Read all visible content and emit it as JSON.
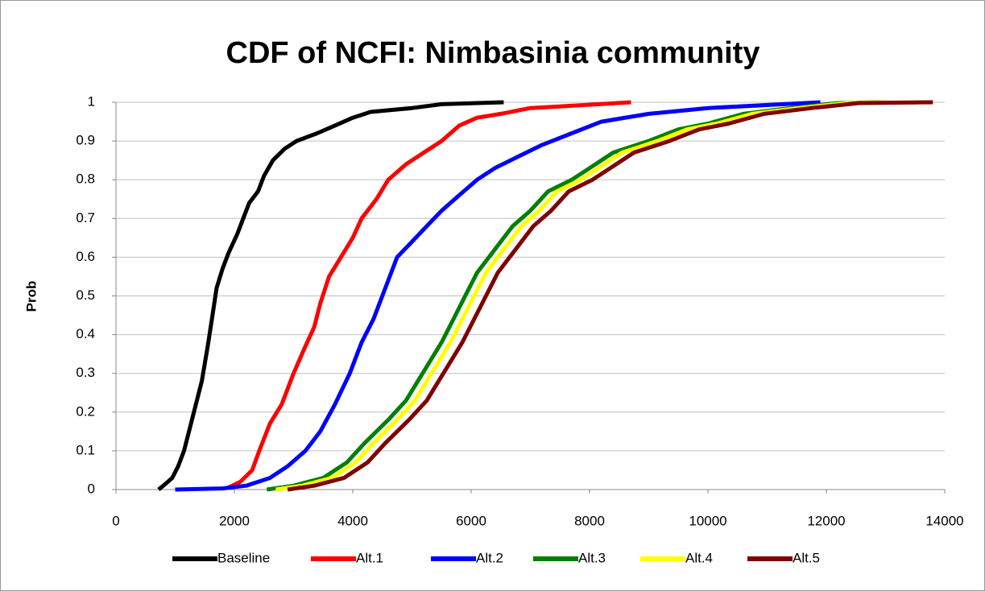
{
  "chart_data": {
    "type": "line",
    "title": "CDF of NCFI: Nimbasinia community",
    "y_label": "Prob",
    "xlim": [
      0,
      14000
    ],
    "xticks": [
      0,
      2000,
      4000,
      6000,
      8000,
      10000,
      12000,
      14000
    ],
    "ylim": [
      0,
      1
    ],
    "yticks": [
      0,
      0.1,
      0.2,
      0.3,
      0.4,
      0.5,
      0.6,
      0.7,
      0.8,
      0.9,
      1
    ],
    "grid": true,
    "legend": "bottom",
    "series": [
      {
        "name": "Baseline",
        "color": "#000000",
        "x": [
          720,
          800,
          950,
          1050,
          1150,
          1250,
          1350,
          1450,
          1550,
          1620,
          1700,
          1800,
          1900,
          2050,
          2150,
          2250,
          2400,
          2500,
          2650,
          2850,
          3050,
          3400,
          3700,
          4000,
          4300,
          5000,
          5500,
          6550
        ],
        "values": [
          0,
          0.01,
          0.03,
          0.06,
          0.1,
          0.16,
          0.22,
          0.28,
          0.37,
          0.44,
          0.52,
          0.57,
          0.61,
          0.66,
          0.7,
          0.74,
          0.77,
          0.81,
          0.85,
          0.88,
          0.9,
          0.92,
          0.94,
          0.96,
          0.975,
          0.985,
          0.995,
          1
        ]
      },
      {
        "name": "Alt.1",
        "color": "#ff0000",
        "x": [
          1900,
          2100,
          2300,
          2420,
          2600,
          2800,
          3000,
          3200,
          3350,
          3450,
          3600,
          3800,
          4000,
          4150,
          4400,
          4600,
          4900,
          5200,
          5500,
          5800,
          6100,
          6500,
          7000,
          7600,
          8700
        ],
        "values": [
          0.005,
          0.02,
          0.05,
          0.1,
          0.17,
          0.22,
          0.3,
          0.37,
          0.42,
          0.48,
          0.55,
          0.6,
          0.65,
          0.7,
          0.75,
          0.8,
          0.84,
          0.87,
          0.9,
          0.94,
          0.96,
          0.97,
          0.985,
          0.99,
          1
        ]
      },
      {
        "name": "Alt.2",
        "color": "#0000ff",
        "x": [
          1000,
          1800,
          2200,
          2600,
          2900,
          3200,
          3450,
          3700,
          3950,
          4150,
          4350,
          4550,
          4750,
          5000,
          5250,
          5500,
          5800,
          6100,
          6400,
          6800,
          7200,
          7700,
          8200,
          9000,
          10000,
          11900
        ],
        "values": [
          0,
          0.003,
          0.01,
          0.03,
          0.06,
          0.1,
          0.15,
          0.22,
          0.3,
          0.38,
          0.44,
          0.52,
          0.6,
          0.64,
          0.68,
          0.72,
          0.76,
          0.8,
          0.83,
          0.86,
          0.89,
          0.92,
          0.95,
          0.97,
          0.985,
          1
        ]
      },
      {
        "name": "Alt.3",
        "color": "#008000",
        "x": [
          2550,
          3000,
          3500,
          3900,
          4200,
          4600,
          4900,
          5100,
          5300,
          5500,
          5700,
          5900,
          6100,
          6400,
          6700,
          7000,
          7300,
          7700,
          8000,
          8400,
          9000,
          9500,
          10000,
          10600,
          11400,
          12200,
          12900
        ],
        "values": [
          0,
          0.01,
          0.03,
          0.07,
          0.12,
          0.18,
          0.23,
          0.28,
          0.33,
          0.38,
          0.44,
          0.5,
          0.56,
          0.62,
          0.68,
          0.72,
          0.77,
          0.8,
          0.83,
          0.87,
          0.9,
          0.93,
          0.945,
          0.97,
          0.985,
          0.998,
          1
        ]
      },
      {
        "name": "Alt.4",
        "color": "#ffff00",
        "x": [
          2700,
          3150,
          3650,
          4050,
          4350,
          4750,
          5050,
          5250,
          5450,
          5650,
          5850,
          6050,
          6250,
          6550,
          6850,
          7150,
          7450,
          7850,
          8150,
          8550,
          9150,
          9650,
          10150,
          10750,
          11550,
          12350,
          13000
        ],
        "values": [
          0,
          0.01,
          0.03,
          0.07,
          0.12,
          0.18,
          0.23,
          0.28,
          0.33,
          0.38,
          0.44,
          0.5,
          0.56,
          0.62,
          0.68,
          0.72,
          0.77,
          0.8,
          0.83,
          0.87,
          0.9,
          0.93,
          0.945,
          0.97,
          0.985,
          0.998,
          1
        ]
      },
      {
        "name": "Alt.5",
        "color": "#800000",
        "x": [
          2900,
          3350,
          3850,
          4250,
          4550,
          4950,
          5250,
          5450,
          5650,
          5850,
          6050,
          6250,
          6450,
          6750,
          7050,
          7350,
          7650,
          8050,
          8350,
          8750,
          9350,
          9850,
          10350,
          10950,
          11750,
          12550,
          13800
        ],
        "values": [
          0,
          0.01,
          0.03,
          0.07,
          0.12,
          0.18,
          0.23,
          0.28,
          0.33,
          0.38,
          0.44,
          0.5,
          0.56,
          0.62,
          0.68,
          0.72,
          0.77,
          0.8,
          0.83,
          0.87,
          0.9,
          0.93,
          0.945,
          0.97,
          0.985,
          0.998,
          1
        ]
      }
    ]
  }
}
